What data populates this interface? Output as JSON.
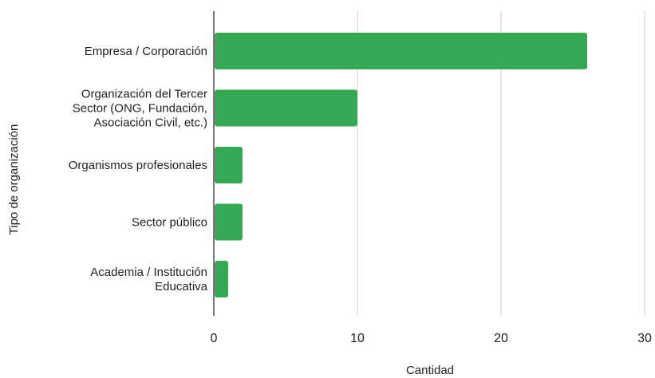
{
  "chart_data": {
    "type": "bar",
    "orientation": "horizontal",
    "categories": [
      [
        "Empresa / Corporación"
      ],
      [
        "Organización del Tercer",
        "Sector (ONG, Fundación,",
        "Asociación Civil, etc.)"
      ],
      [
        "Organismos profesionales"
      ],
      [
        "Sector público"
      ],
      [
        "Academia / Institución",
        "Educativa"
      ]
    ],
    "values": [
      26,
      10,
      2,
      2,
      1
    ],
    "xlabel": "Cantidad",
    "ylabel": "Tipo de organización",
    "xlim": [
      0,
      30
    ],
    "xticks": [
      0,
      10,
      20,
      30
    ],
    "grid": true,
    "colors": {
      "bar": "#34a853",
      "grid": "#cccccc",
      "axis": "#333333"
    }
  }
}
